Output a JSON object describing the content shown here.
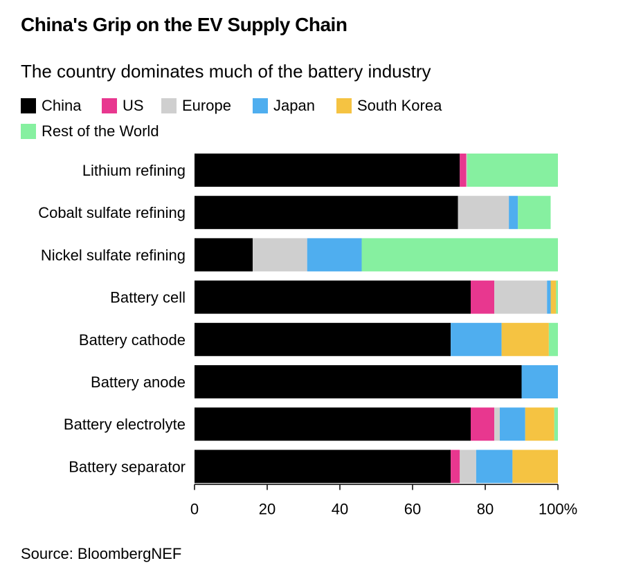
{
  "header": {
    "title": "China's Grip on the EV Supply Chain",
    "subtitle": "The country dominates much of the battery industry"
  },
  "footer": {
    "source": "Source: BloombergNEF"
  },
  "chart_data": {
    "type": "bar",
    "orientation": "horizontal",
    "stacked": true,
    "title": "China's Grip on the EV Supply Chain",
    "subtitle": "The country dominates much of the battery industry",
    "xlabel": "",
    "ylabel": "",
    "xlim": [
      0,
      100
    ],
    "xticks": [
      "0",
      "20",
      "40",
      "60",
      "80",
      "100%"
    ],
    "legend_placement": "top-left",
    "grid": false,
    "categories": [
      "Lithium refining",
      "Cobalt sulfate refining",
      "Nickel sulfate refining",
      "Battery cell",
      "Battery cathode",
      "Battery anode",
      "Battery electrolyte",
      "Battery separator"
    ],
    "series": [
      {
        "name": "China",
        "color": "#000000",
        "values": [
          73,
          72.5,
          16,
          76,
          70.5,
          90,
          76,
          70.5
        ]
      },
      {
        "name": "US",
        "color": "#e8378f",
        "values": [
          1.8,
          0,
          0,
          6.5,
          0,
          0,
          6.5,
          2.5
        ]
      },
      {
        "name": "Europe",
        "color": "#cfcfcf",
        "values": [
          0.2,
          14,
          15,
          14.5,
          0,
          0,
          1.5,
          4.5
        ]
      },
      {
        "name": "Japan",
        "color": "#4faeef",
        "values": [
          0,
          2.5,
          15,
          1,
          14,
          10,
          7,
          10
        ]
      },
      {
        "name": "South Korea",
        "color": "#f5c342",
        "values": [
          0,
          0,
          0,
          1.5,
          13,
          0,
          8,
          12.5
        ]
      },
      {
        "name": "Rest of the World",
        "color": "#86f0a0",
        "values": [
          25,
          9,
          54,
          0.5,
          2.5,
          0,
          1,
          0
        ]
      }
    ]
  }
}
